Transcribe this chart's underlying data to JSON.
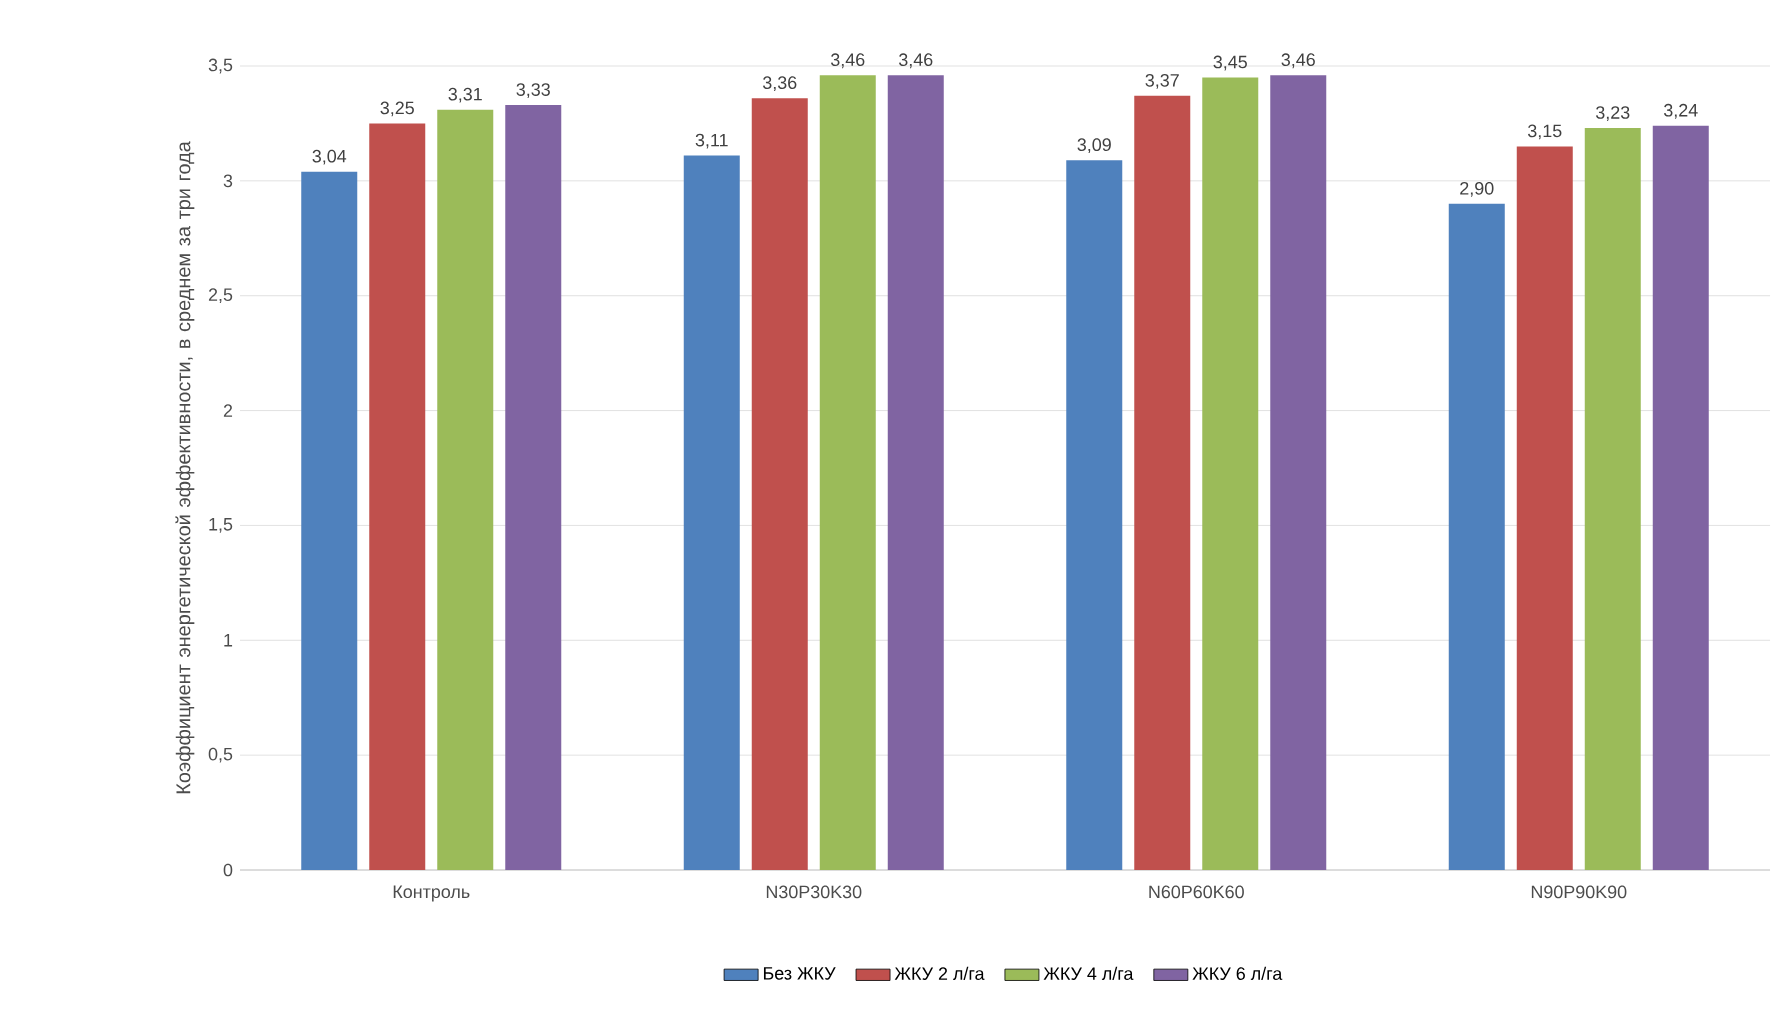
{
  "chart_data": {
    "type": "bar",
    "ylabel": "Коэффициент энергетической эффективности, в среднем за три года",
    "categories": [
      "Контроль",
      "N30P30K30",
      "N60P60K60",
      "N90P90K90"
    ],
    "series": [
      {
        "name": "Без ЖКУ",
        "color": "#4f81bd",
        "values": [
          3.04,
          3.11,
          3.09,
          2.9
        ],
        "value_labels": [
          "3,04",
          "3,11",
          "3,09",
          "2,90"
        ]
      },
      {
        "name": "ЖКУ 2 л/га",
        "color": "#c0504d",
        "values": [
          3.25,
          3.36,
          3.37,
          3.15
        ],
        "value_labels": [
          "3,25",
          "3,36",
          "3,37",
          "3,15"
        ]
      },
      {
        "name": "ЖКУ 4 л/га",
        "color": "#9bbb59",
        "values": [
          3.31,
          3.46,
          3.45,
          3.23
        ],
        "value_labels": [
          "3,31",
          "3,46",
          "3,45",
          "3,23"
        ]
      },
      {
        "name": "ЖКУ 6 л/га",
        "color": "#8064a2",
        "values": [
          3.33,
          3.46,
          3.46,
          3.24
        ],
        "value_labels": [
          "3,33",
          "3,46",
          "3,46",
          "3,24"
        ]
      }
    ],
    "ylim": [
      0,
      3.5
    ],
    "yticks": [
      0,
      {
        "value": 0.5,
        "label": "0,5"
      },
      1,
      {
        "value": 1.5,
        "label": "1,5"
      },
      2,
      {
        "value": 2.5,
        "label": "2,5"
      },
      3,
      {
        "value": 3.5,
        "label": "3,5"
      }
    ],
    "grid": "y",
    "legend": "bottom"
  }
}
